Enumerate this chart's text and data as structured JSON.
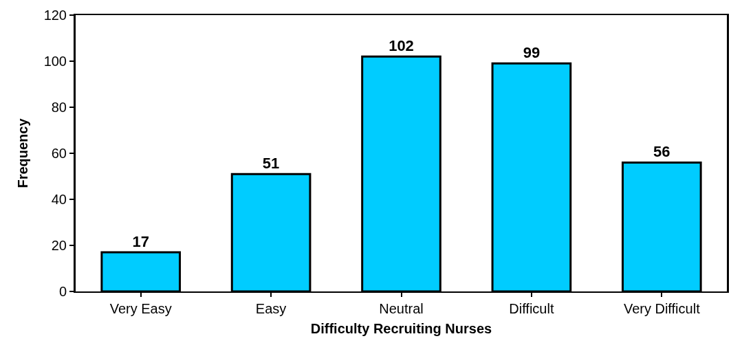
{
  "chart_data": {
    "type": "bar",
    "xlabel": "Difficulty Recruiting Nurses",
    "ylabel": "Frequency",
    "categories": [
      "Very Easy",
      "Easy",
      "Neutral",
      "Difficult",
      "Very Difficult"
    ],
    "values": [
      17,
      51,
      102,
      99,
      56
    ],
    "color": "#00ccff",
    "ylim": [
      0,
      120
    ],
    "yticks": [
      0,
      20,
      40,
      60,
      80,
      100,
      120
    ],
    "grid": false,
    "data_labels": true,
    "legend": false
  }
}
